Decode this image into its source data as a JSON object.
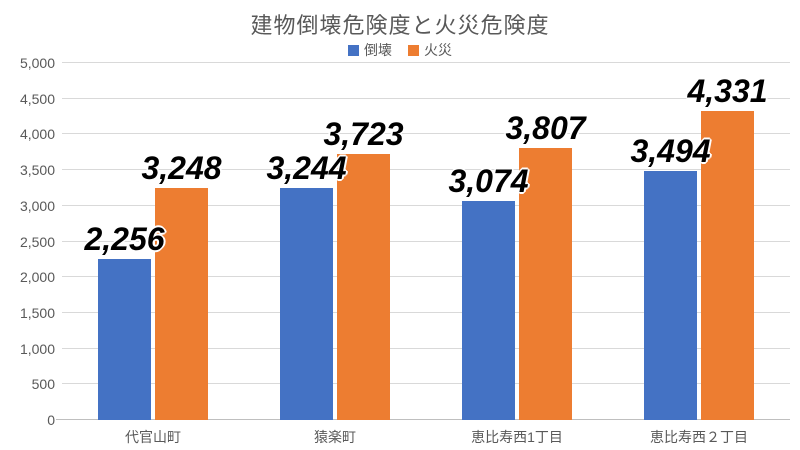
{
  "chart_data": {
    "type": "bar",
    "title": "建物倒壊危険度と火災危険度",
    "categories": [
      "代官山町",
      "猿楽町",
      "恵比寿西1丁目",
      "恵比寿西２丁目"
    ],
    "series": [
      {
        "name": "倒壊",
        "color": "#4472c4",
        "values": [
          2256,
          3244,
          3074,
          3494
        ],
        "labels": [
          "2,256",
          "3,244",
          "3,074",
          "3,494"
        ]
      },
      {
        "name": "火災",
        "color": "#ed7d31",
        "values": [
          3248,
          3723,
          3807,
          4331
        ],
        "labels": [
          "3,248",
          "3,723",
          "3,807",
          "4,331"
        ]
      }
    ],
    "ylim": [
      0,
      5000
    ],
    "ytick_step": 500,
    "yticks": [
      "0",
      "500",
      "1,000",
      "1,500",
      "2,000",
      "2,500",
      "3,000",
      "3,500",
      "4,000",
      "4,500",
      "5,000"
    ],
    "grid": true,
    "legend_position": "top"
  },
  "colors": {
    "title_text": "#595959",
    "axis_text": "#595959",
    "gridline": "#d9d9d9",
    "axis_line": "#bfbfbf",
    "data_label": "#000000",
    "background": "#ffffff"
  }
}
